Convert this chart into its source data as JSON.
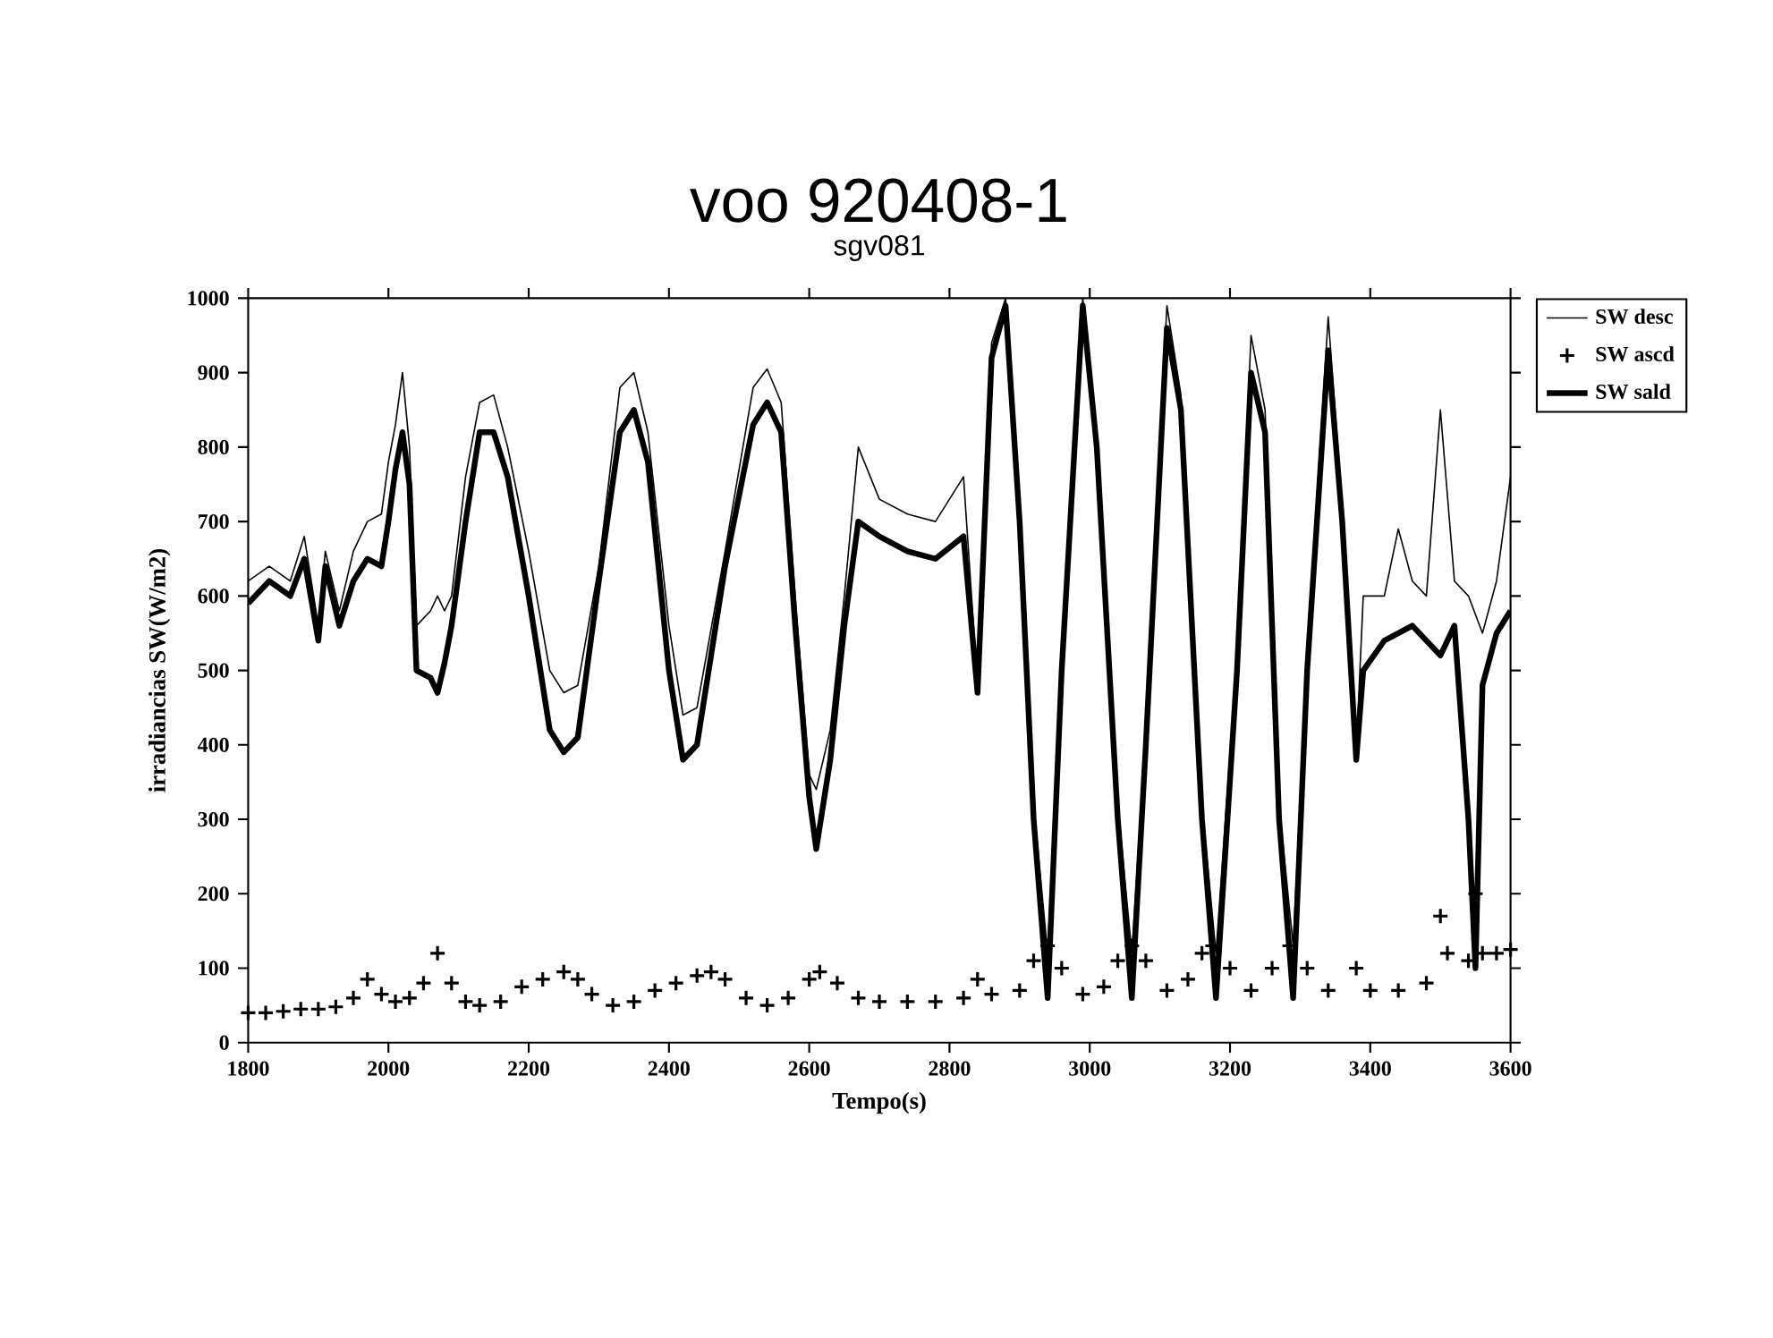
{
  "chart_data": {
    "type": "line",
    "title": "voo 920408-1",
    "subtitle": "sgv081",
    "xlabel": "Tempo(s)",
    "ylabel": "irradiancias SW(W/m2)",
    "xlim": [
      1800,
      3600
    ],
    "xticks": [
      1800,
      2000,
      2200,
      2400,
      2600,
      2800,
      3000,
      3200,
      3400,
      3600
    ],
    "ylim": [
      0,
      1000
    ],
    "yticks": [
      0,
      100,
      200,
      300,
      400,
      500,
      600,
      700,
      800,
      900,
      1000
    ],
    "legend": "top right",
    "series": [
      {
        "name": "SW desc",
        "color": "#000000",
        "x": [
          1800,
          1830,
          1860,
          1880,
          1900,
          1910,
          1930,
          1950,
          1970,
          1990,
          2000,
          2010,
          2020,
          2030,
          2040,
          2060,
          2070,
          2080,
          2090,
          2110,
          2130,
          2150,
          2170,
          2200,
          2230,
          2250,
          2270,
          2300,
          2330,
          2350,
          2370,
          2400,
          2420,
          2440,
          2480,
          2520,
          2540,
          2560,
          2580,
          2600,
          2610,
          2630,
          2650,
          2670,
          2700,
          2740,
          2780,
          2820,
          2840,
          2860,
          2880,
          2900,
          2920,
          2940,
          2960,
          2990,
          3010,
          3040,
          3060,
          3080,
          3110,
          3130,
          3160,
          3180,
          3210,
          3230,
          3250,
          3270,
          3290,
          3310,
          3340,
          3360,
          3380,
          3390,
          3420,
          3440,
          3460,
          3480,
          3500,
          3520,
          3540,
          3560,
          3580,
          3600
        ],
        "values": [
          620,
          640,
          620,
          680,
          560,
          660,
          580,
          660,
          700,
          710,
          780,
          830,
          900,
          800,
          560,
          580,
          600,
          580,
          600,
          760,
          860,
          870,
          800,
          660,
          500,
          470,
          480,
          640,
          880,
          900,
          820,
          560,
          440,
          450,
          660,
          880,
          905,
          860,
          600,
          360,
          340,
          420,
          600,
          800,
          730,
          710,
          700,
          760,
          480,
          940,
          1000,
          720,
          320,
          120,
          520,
          1000,
          820,
          320,
          120,
          420,
          990,
          870,
          320,
          120,
          520,
          950,
          850,
          320,
          130,
          520,
          975,
          720,
          390,
          600,
          600,
          690,
          620,
          600,
          850,
          620,
          600,
          550,
          620,
          760
        ]
      },
      {
        "name": "SW ascd",
        "color": "#000000",
        "type": "scatter",
        "marker": "cross",
        "x": [
          1800,
          1825,
          1850,
          1875,
          1900,
          1925,
          1950,
          1970,
          1990,
          2010,
          2030,
          2050,
          2070,
          2090,
          2110,
          2130,
          2160,
          2190,
          2220,
          2250,
          2270,
          2290,
          2320,
          2350,
          2380,
          2410,
          2440,
          2460,
          2480,
          2510,
          2540,
          2570,
          2600,
          2615,
          2640,
          2670,
          2700,
          2740,
          2780,
          2820,
          2840,
          2860,
          2900,
          2920,
          2940,
          2960,
          2990,
          3020,
          3040,
          3060,
          3080,
          3110,
          3140,
          3160,
          3175,
          3200,
          3230,
          3260,
          3285,
          3310,
          3340,
          3380,
          3400,
          3440,
          3480,
          3500,
          3510,
          3540,
          3550,
          3560,
          3580,
          3600
        ],
        "values": [
          40,
          40,
          42,
          45,
          45,
          48,
          60,
          85,
          65,
          55,
          60,
          80,
          120,
          80,
          55,
          50,
          55,
          75,
          85,
          95,
          85,
          65,
          50,
          55,
          70,
          80,
          90,
          95,
          85,
          60,
          50,
          60,
          85,
          95,
          80,
          60,
          55,
          55,
          55,
          60,
          85,
          65,
          70,
          110,
          130,
          100,
          65,
          75,
          110,
          130,
          110,
          70,
          85,
          120,
          130,
          100,
          70,
          100,
          130,
          100,
          70,
          100,
          70,
          70,
          80,
          170,
          120,
          110,
          200,
          120,
          120,
          125
        ]
      },
      {
        "name": "SW sald",
        "color": "#000000",
        "x": [
          1800,
          1830,
          1860,
          1880,
          1900,
          1910,
          1930,
          1950,
          1970,
          1990,
          2000,
          2010,
          2020,
          2030,
          2040,
          2060,
          2070,
          2080,
          2090,
          2110,
          2130,
          2150,
          2170,
          2200,
          2230,
          2250,
          2270,
          2300,
          2330,
          2350,
          2370,
          2400,
          2420,
          2440,
          2480,
          2520,
          2540,
          2560,
          2580,
          2600,
          2610,
          2630,
          2650,
          2670,
          2700,
          2740,
          2780,
          2820,
          2840,
          2860,
          2880,
          2900,
          2920,
          2940,
          2960,
          2990,
          3010,
          3040,
          3060,
          3080,
          3110,
          3130,
          3160,
          3180,
          3210,
          3230,
          3250,
          3270,
          3290,
          3310,
          3340,
          3360,
          3380,
          3390,
          3420,
          3460,
          3500,
          3520,
          3540,
          3550,
          3560,
          3580,
          3600
        ],
        "values": [
          590,
          620,
          600,
          650,
          540,
          640,
          560,
          620,
          650,
          640,
          700,
          770,
          820,
          750,
          500,
          490,
          470,
          510,
          560,
          700,
          820,
          820,
          760,
          600,
          420,
          390,
          410,
          620,
          820,
          850,
          780,
          500,
          380,
          400,
          640,
          830,
          860,
          820,
          560,
          330,
          260,
          380,
          560,
          700,
          680,
          660,
          650,
          680,
          470,
          920,
          990,
          700,
          300,
          60,
          500,
          990,
          800,
          300,
          60,
          400,
          960,
          850,
          300,
          60,
          500,
          900,
          820,
          300,
          60,
          500,
          930,
          700,
          380,
          500,
          540,
          560,
          520,
          560,
          300,
          100,
          480,
          550,
          580
        ]
      }
    ]
  }
}
